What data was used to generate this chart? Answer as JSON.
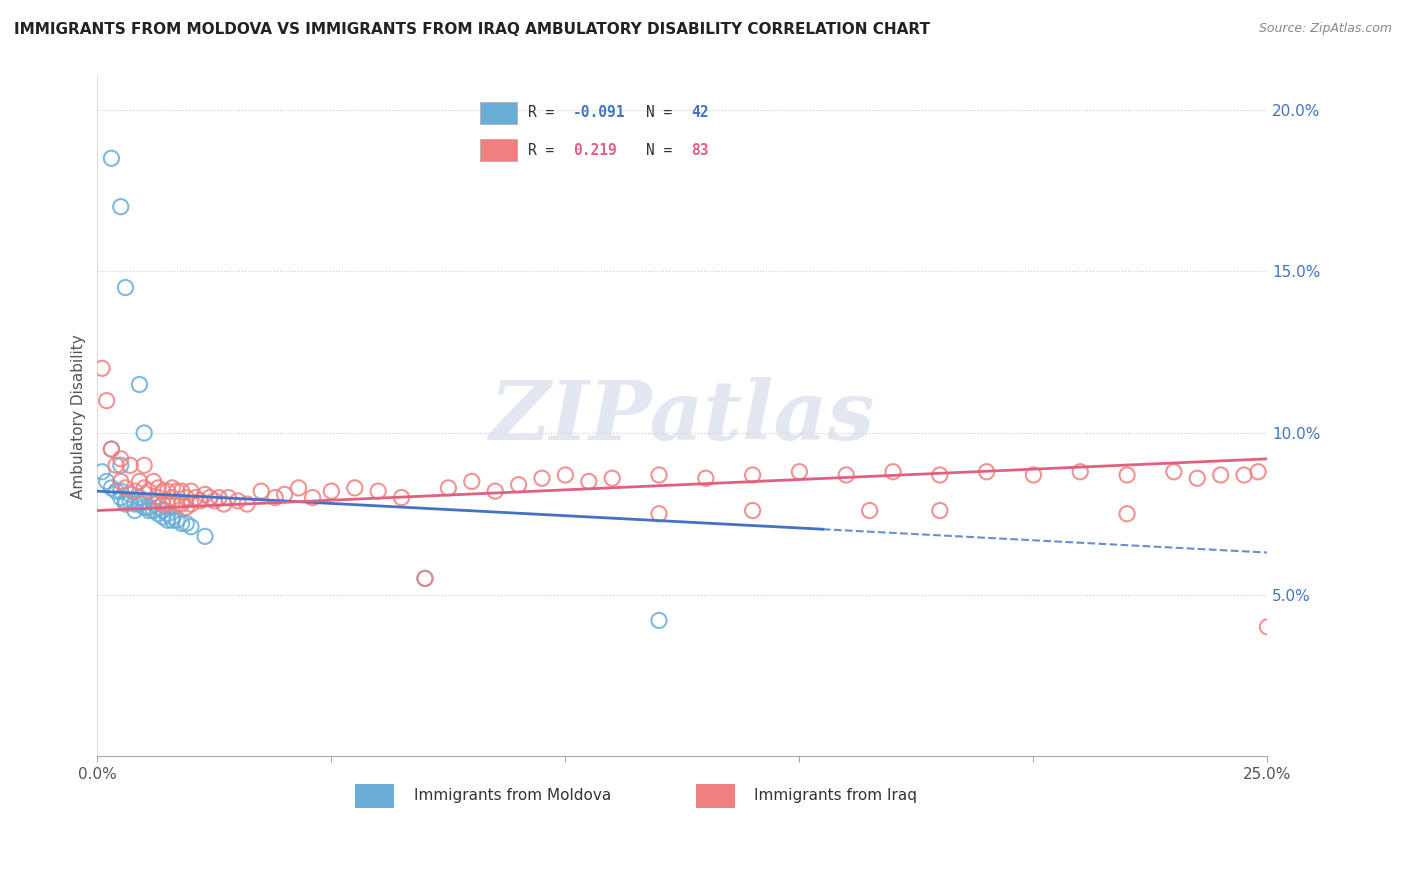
{
  "title": "IMMIGRANTS FROM MOLDOVA VS IMMIGRANTS FROM IRAQ AMBULATORY DISABILITY CORRELATION CHART",
  "source": "Source: ZipAtlas.com",
  "ylabel_label": "Ambulatory Disability",
  "xmin": 0.0,
  "xmax": 0.25,
  "ymin": 0.0,
  "ymax": 0.21,
  "color_moldova": "#6aaed6",
  "color_iraq": "#f08080",
  "color_moldova_line": "#4472c4",
  "color_iraq_line": "#e06080",
  "color_axis_labels": "#4472c4",
  "watermark_text": "ZIPatlas",
  "legend_r1": "-0.091",
  "legend_n1": "42",
  "legend_r2": "0.219",
  "legend_n2": "83",
  "moldova_points": [
    [
      0.003,
      0.185
    ],
    [
      0.005,
      0.17
    ],
    [
      0.006,
      0.145
    ],
    [
      0.009,
      0.115
    ],
    [
      0.01,
      0.1
    ],
    [
      0.003,
      0.095
    ],
    [
      0.005,
      0.09
    ],
    [
      0.001,
      0.088
    ],
    [
      0.002,
      0.085
    ],
    [
      0.003,
      0.083
    ],
    [
      0.004,
      0.082
    ],
    [
      0.005,
      0.082
    ],
    [
      0.005,
      0.08
    ],
    [
      0.006,
      0.079
    ],
    [
      0.006,
      0.078
    ],
    [
      0.007,
      0.081
    ],
    [
      0.007,
      0.079
    ],
    [
      0.008,
      0.078
    ],
    [
      0.008,
      0.076
    ],
    [
      0.009,
      0.08
    ],
    [
      0.009,
      0.078
    ],
    [
      0.01,
      0.079
    ],
    [
      0.01,
      0.077
    ],
    [
      0.011,
      0.077
    ],
    [
      0.011,
      0.076
    ],
    [
      0.012,
      0.078
    ],
    [
      0.012,
      0.076
    ],
    [
      0.013,
      0.077
    ],
    [
      0.013,
      0.075
    ],
    [
      0.014,
      0.076
    ],
    [
      0.014,
      0.074
    ],
    [
      0.015,
      0.075
    ],
    [
      0.015,
      0.073
    ],
    [
      0.016,
      0.074
    ],
    [
      0.016,
      0.073
    ],
    [
      0.017,
      0.073
    ],
    [
      0.018,
      0.072
    ],
    [
      0.019,
      0.072
    ],
    [
      0.02,
      0.071
    ],
    [
      0.023,
      0.068
    ],
    [
      0.07,
      0.055
    ],
    [
      0.12,
      0.042
    ]
  ],
  "iraq_points": [
    [
      0.001,
      0.12
    ],
    [
      0.002,
      0.11
    ],
    [
      0.003,
      0.095
    ],
    [
      0.004,
      0.09
    ],
    [
      0.005,
      0.092
    ],
    [
      0.005,
      0.085
    ],
    [
      0.006,
      0.083
    ],
    [
      0.007,
      0.09
    ],
    [
      0.008,
      0.082
    ],
    [
      0.009,
      0.085
    ],
    [
      0.01,
      0.09
    ],
    [
      0.01,
      0.083
    ],
    [
      0.011,
      0.082
    ],
    [
      0.012,
      0.085
    ],
    [
      0.013,
      0.083
    ],
    [
      0.013,
      0.08
    ],
    [
      0.014,
      0.082
    ],
    [
      0.014,
      0.078
    ],
    [
      0.015,
      0.082
    ],
    [
      0.015,
      0.078
    ],
    [
      0.016,
      0.083
    ],
    [
      0.016,
      0.08
    ],
    [
      0.017,
      0.082
    ],
    [
      0.017,
      0.078
    ],
    [
      0.018,
      0.082
    ],
    [
      0.018,
      0.078
    ],
    [
      0.019,
      0.08
    ],
    [
      0.019,
      0.077
    ],
    [
      0.02,
      0.082
    ],
    [
      0.02,
      0.078
    ],
    [
      0.021,
      0.08
    ],
    [
      0.022,
      0.079
    ],
    [
      0.023,
      0.081
    ],
    [
      0.024,
      0.08
    ],
    [
      0.025,
      0.079
    ],
    [
      0.026,
      0.08
    ],
    [
      0.027,
      0.078
    ],
    [
      0.028,
      0.08
    ],
    [
      0.03,
      0.079
    ],
    [
      0.032,
      0.078
    ],
    [
      0.035,
      0.082
    ],
    [
      0.038,
      0.08
    ],
    [
      0.04,
      0.081
    ],
    [
      0.043,
      0.083
    ],
    [
      0.046,
      0.08
    ],
    [
      0.05,
      0.082
    ],
    [
      0.055,
      0.083
    ],
    [
      0.06,
      0.082
    ],
    [
      0.065,
      0.08
    ],
    [
      0.07,
      0.055
    ],
    [
      0.075,
      0.083
    ],
    [
      0.08,
      0.085
    ],
    [
      0.085,
      0.082
    ],
    [
      0.09,
      0.084
    ],
    [
      0.095,
      0.086
    ],
    [
      0.1,
      0.087
    ],
    [
      0.105,
      0.085
    ],
    [
      0.11,
      0.086
    ],
    [
      0.12,
      0.087
    ],
    [
      0.13,
      0.086
    ],
    [
      0.14,
      0.087
    ],
    [
      0.15,
      0.088
    ],
    [
      0.16,
      0.087
    ],
    [
      0.17,
      0.088
    ],
    [
      0.18,
      0.087
    ],
    [
      0.19,
      0.088
    ],
    [
      0.2,
      0.087
    ],
    [
      0.21,
      0.088
    ],
    [
      0.22,
      0.087
    ],
    [
      0.23,
      0.088
    ],
    [
      0.235,
      0.086
    ],
    [
      0.245,
      0.087
    ],
    [
      0.248,
      0.088
    ],
    [
      0.12,
      0.075
    ],
    [
      0.14,
      0.076
    ],
    [
      0.165,
      0.076
    ],
    [
      0.18,
      0.076
    ],
    [
      0.22,
      0.075
    ],
    [
      0.24,
      0.087
    ],
    [
      0.25,
      0.04
    ]
  ]
}
